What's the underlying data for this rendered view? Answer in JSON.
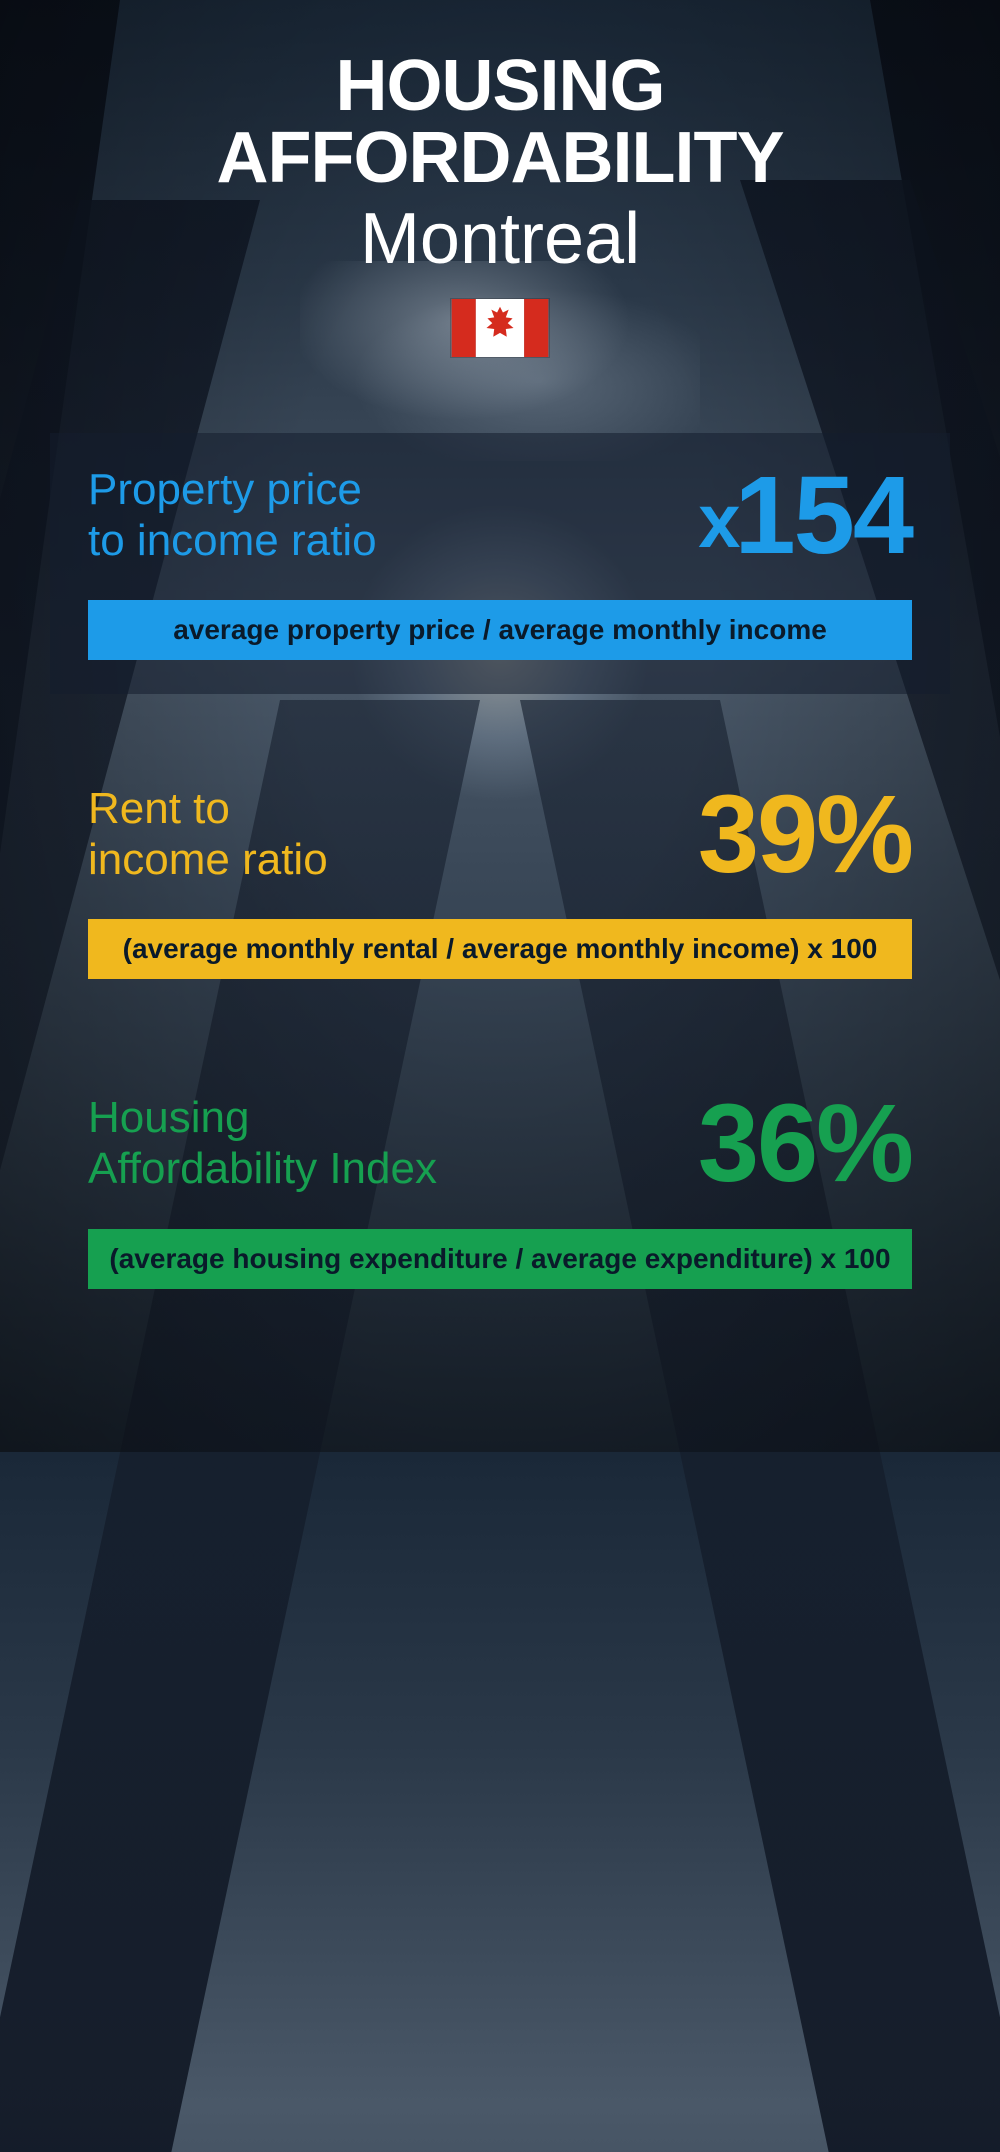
{
  "header": {
    "title": "HOUSING AFFORDABILITY",
    "subtitle": "Montreal",
    "flag": "canada"
  },
  "metrics": [
    {
      "label": "Property price\nto income ratio",
      "value_prefix": "x",
      "value": "154",
      "formula": "average property price / average monthly income",
      "color_text": "#1d9be8",
      "formula_bg": "#1d9be8",
      "formula_text_color": "#0a1a2a",
      "card_background": "rgba(20,30,45,0.55)"
    },
    {
      "label": "Rent to\nincome ratio",
      "value_prefix": "",
      "value": "39%",
      "formula": "(average monthly rental / average monthly income) x 100",
      "color_text": "#f0b81e",
      "formula_bg": "#f0b81e",
      "formula_text_color": "#0a1a2a",
      "card_background": "transparent"
    },
    {
      "label": "Housing\nAffordability Index",
      "value_prefix": "",
      "value": "36%",
      "formula": "(average housing expenditure / average expenditure) x 100",
      "color_text": "#16a050",
      "formula_bg": "#16a050",
      "formula_text_color": "#0a1a2a",
      "card_background": "transparent"
    }
  ],
  "typography": {
    "title_fontsize": 72,
    "title_weight": 900,
    "subtitle_fontsize": 72,
    "subtitle_weight": 300,
    "metric_label_fontsize": 44,
    "metric_value_fontsize": 110,
    "formula_fontsize": 28
  },
  "background": {
    "gradient_stops": [
      "#1a2838",
      "#2a3848",
      "#4a5868",
      "#3a4858",
      "#1a2430"
    ]
  }
}
